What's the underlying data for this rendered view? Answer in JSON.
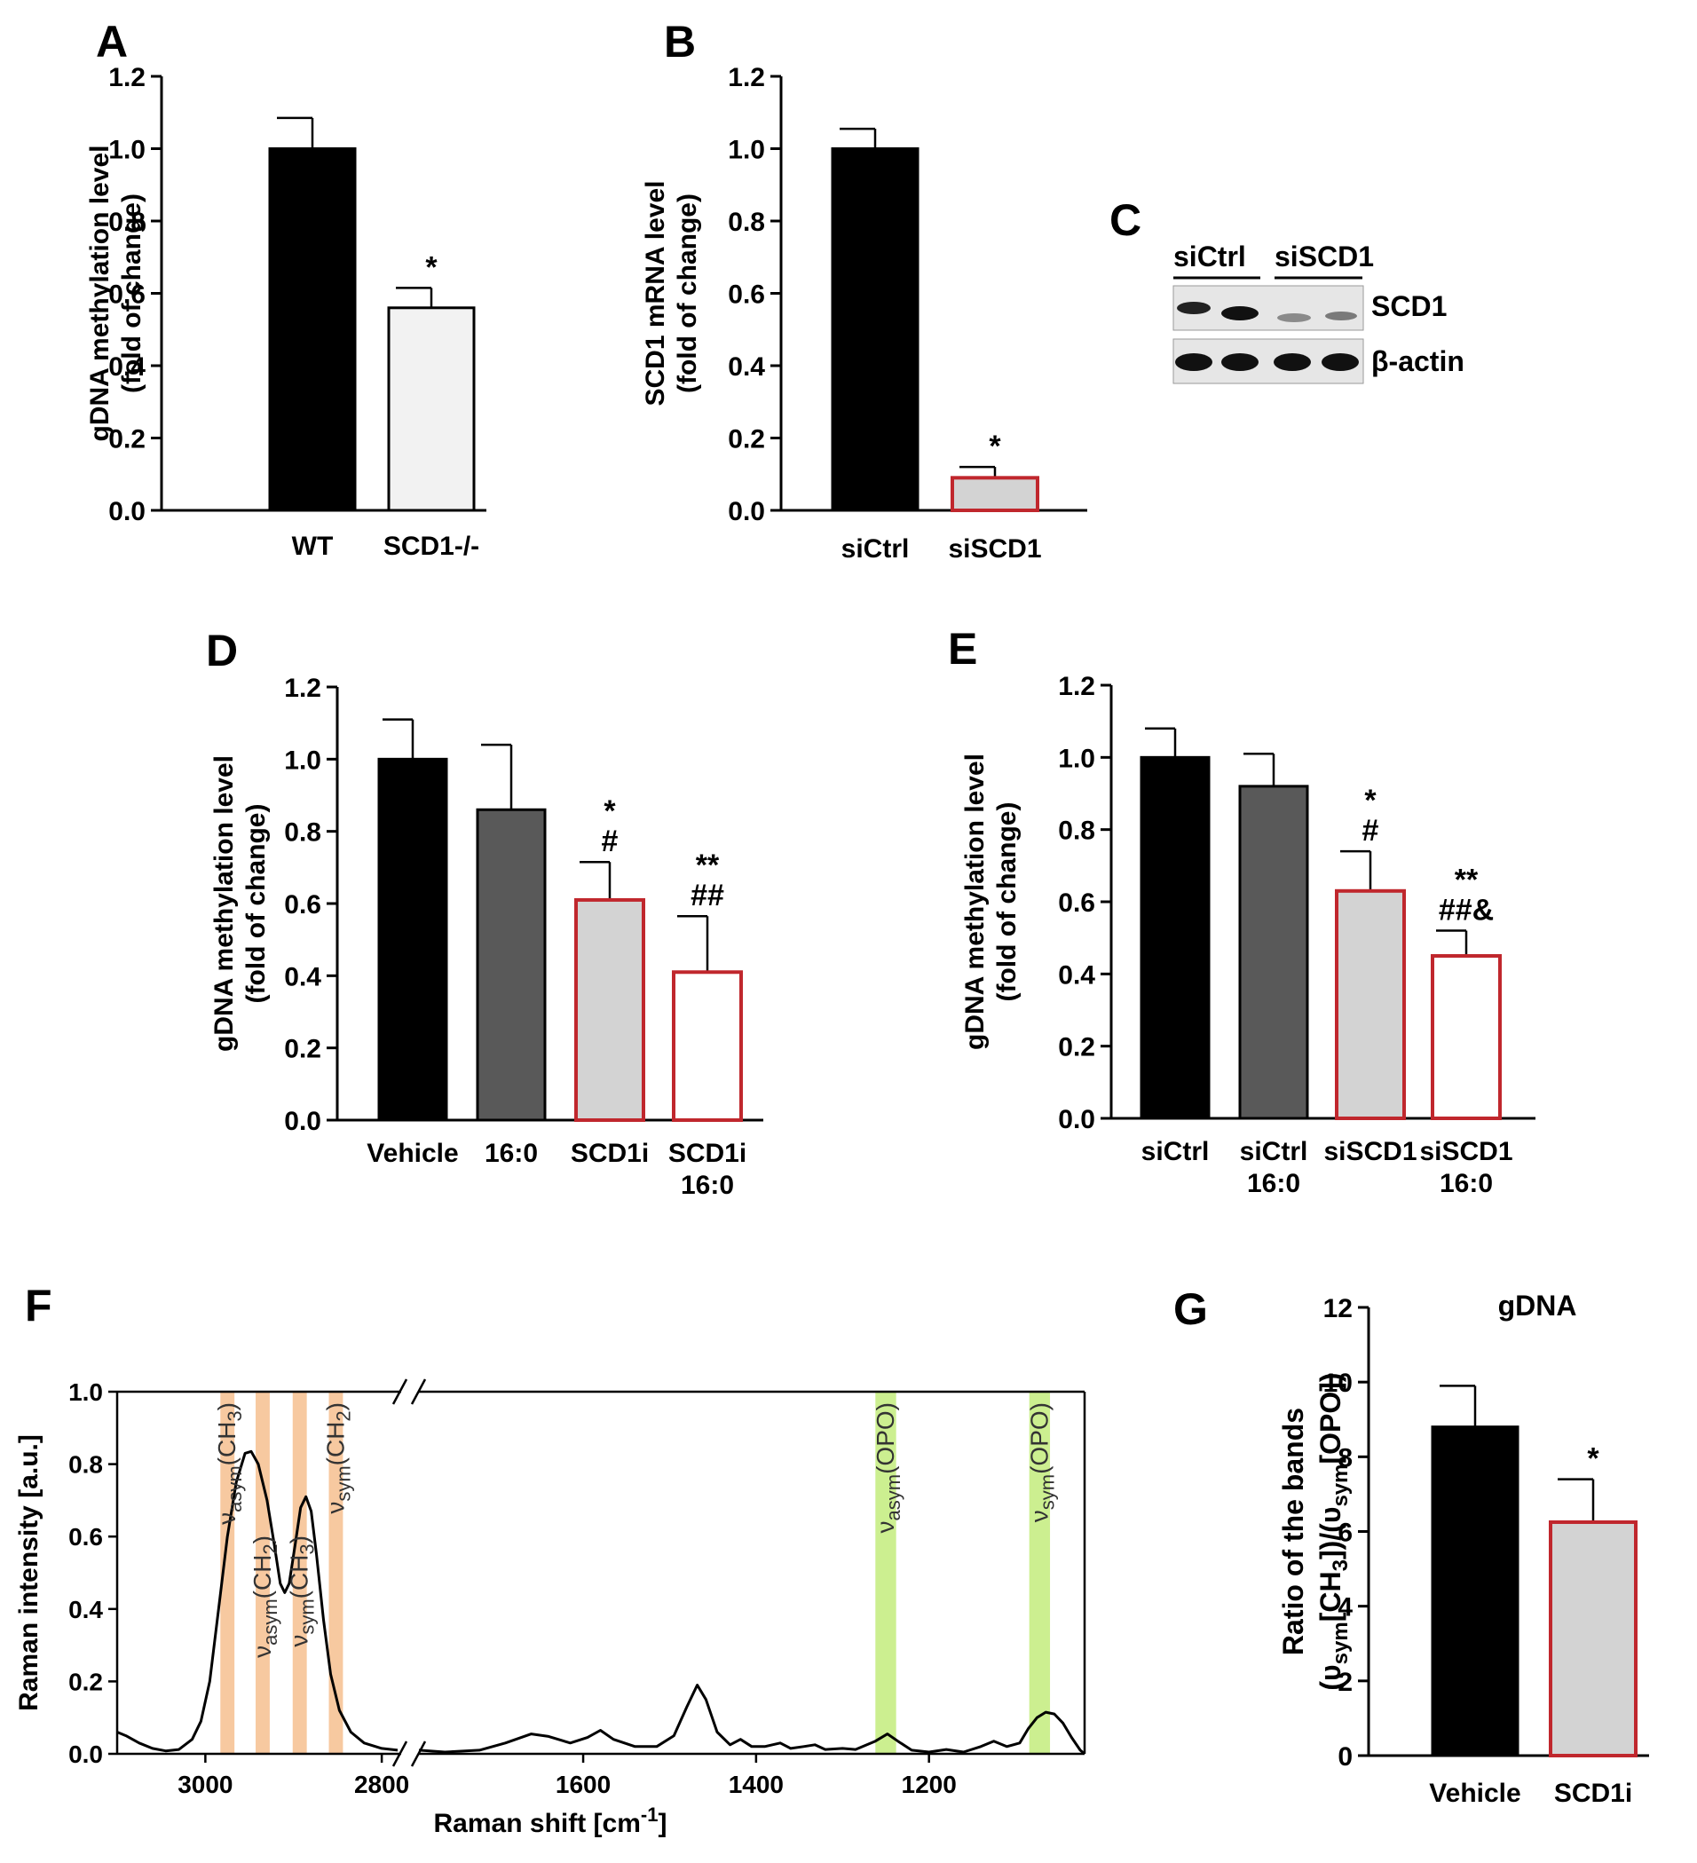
{
  "figure": {
    "panel_letters": [
      "A",
      "B",
      "C",
      "D",
      "E",
      "F",
      "G"
    ]
  },
  "chart_data": [
    {
      "panel": "A",
      "type": "bar",
      "categories": [
        "WT",
        "SCD1-/-"
      ],
      "values": [
        1.0,
        0.56
      ],
      "errors": [
        0.085,
        0.055
      ],
      "annotations": [
        "",
        "*"
      ],
      "ylabel_lines": [
        "gDNA methylation level",
        "(fold of change)"
      ],
      "ylim": [
        0,
        1.2
      ],
      "yticks": [
        0.0,
        0.2,
        0.4,
        0.6,
        0.8,
        1.0,
        1.2
      ],
      "bar_fill": [
        "#000000",
        "#f2f2f2"
      ],
      "bar_stroke": [
        "#000000",
        "#000000"
      ]
    },
    {
      "panel": "B",
      "type": "bar",
      "categories": [
        "siCtrl",
        "siSCD1"
      ],
      "values": [
        1.0,
        0.09
      ],
      "errors": [
        0.055,
        0.03
      ],
      "annotations": [
        "",
        "*"
      ],
      "ylabel_lines": [
        "SCD1 mRNA level",
        "(fold of change)"
      ],
      "ylim": [
        0,
        1.2
      ],
      "yticks": [
        0.0,
        0.2,
        0.4,
        0.6,
        0.8,
        1.0,
        1.2
      ],
      "bar_fill": [
        "#000000",
        "#d3d3d3"
      ],
      "bar_stroke": [
        "#000000",
        "#c0272d"
      ]
    },
    {
      "panel": "D",
      "type": "bar",
      "categories": [
        [
          "Vehicle"
        ],
        [
          "16:0"
        ],
        [
          "SCD1i"
        ],
        [
          "SCD1i",
          "16:0"
        ]
      ],
      "values": [
        1.0,
        0.86,
        0.61,
        0.41
      ],
      "errors": [
        0.11,
        0.18,
        0.105,
        0.155
      ],
      "annotations": [
        [],
        [],
        [
          "*",
          "#"
        ],
        [
          "**",
          "##"
        ]
      ],
      "ylabel_lines": [
        "gDNA methylation level",
        "(fold of change)"
      ],
      "ylim": [
        0,
        1.2
      ],
      "yticks": [
        0.0,
        0.2,
        0.4,
        0.6,
        0.8,
        1.0,
        1.2
      ],
      "bar_fill": [
        "#000000",
        "#595959",
        "#d3d3d3",
        "#ffffff"
      ],
      "bar_stroke": [
        "#000000",
        "#000000",
        "#c0272d",
        "#c0272d"
      ]
    },
    {
      "panel": "E",
      "type": "bar",
      "categories": [
        [
          "siCtrl"
        ],
        [
          "siCtrl",
          "16:0"
        ],
        [
          "siSCD1"
        ],
        [
          "siSCD1",
          "16:0"
        ]
      ],
      "values": [
        1.0,
        0.92,
        0.63,
        0.45
      ],
      "errors": [
        0.08,
        0.09,
        0.11,
        0.07
      ],
      "annotations": [
        [],
        [],
        [
          "*",
          "#"
        ],
        [
          "**",
          "##&"
        ]
      ],
      "ylabel_lines": [
        "gDNA methylation level",
        "(fold of change)"
      ],
      "ylim": [
        0,
        1.2
      ],
      "yticks": [
        0.0,
        0.2,
        0.4,
        0.6,
        0.8,
        1.0,
        1.2
      ],
      "bar_fill": [
        "#000000",
        "#595959",
        "#d3d3d3",
        "#ffffff"
      ],
      "bar_stroke": [
        "#000000",
        "#000000",
        "#c0272d",
        "#c0272d"
      ]
    },
    {
      "panel": "F",
      "type": "line",
      "xlabel_main": "Raman shift [cm",
      "xlabel_sup": "-1",
      "xlabel_end": "]",
      "ylabel": "Raman intensity [a.u.]",
      "ylim": [
        0,
        1.0
      ],
      "yticks": [
        0.0,
        0.2,
        0.4,
        0.6,
        0.8,
        1.0
      ],
      "segment_left": {
        "xlim": [
          3100,
          2780
        ],
        "xticks": [
          3000,
          2800
        ]
      },
      "segment_right": {
        "xlim": [
          1790,
          1020
        ],
        "xticks": [
          1600,
          1400,
          1200
        ]
      },
      "spectrum_left": [
        [
          3100,
          0.06
        ],
        [
          3090,
          0.05
        ],
        [
          3075,
          0.03
        ],
        [
          3060,
          0.015
        ],
        [
          3045,
          0.008
        ],
        [
          3030,
          0.012
        ],
        [
          3015,
          0.04
        ],
        [
          3005,
          0.09
        ],
        [
          2995,
          0.2
        ],
        [
          2985,
          0.4
        ],
        [
          2975,
          0.6
        ],
        [
          2965,
          0.75
        ],
        [
          2955,
          0.83
        ],
        [
          2948,
          0.835
        ],
        [
          2940,
          0.8
        ],
        [
          2930,
          0.7
        ],
        [
          2922,
          0.58
        ],
        [
          2915,
          0.47
        ],
        [
          2910,
          0.445
        ],
        [
          2905,
          0.47
        ],
        [
          2898,
          0.58
        ],
        [
          2892,
          0.68
        ],
        [
          2886,
          0.71
        ],
        [
          2880,
          0.67
        ],
        [
          2874,
          0.55
        ],
        [
          2866,
          0.37
        ],
        [
          2858,
          0.22
        ],
        [
          2848,
          0.12
        ],
        [
          2835,
          0.06
        ],
        [
          2820,
          0.03
        ],
        [
          2800,
          0.015
        ],
        [
          2782,
          0.01
        ]
      ],
      "spectrum_right": [
        [
          1790,
          0.01
        ],
        [
          1760,
          0.005
        ],
        [
          1720,
          0.01
        ],
        [
          1690,
          0.03
        ],
        [
          1660,
          0.055
        ],
        [
          1640,
          0.048
        ],
        [
          1615,
          0.03
        ],
        [
          1595,
          0.045
        ],
        [
          1580,
          0.065
        ],
        [
          1565,
          0.04
        ],
        [
          1540,
          0.02
        ],
        [
          1515,
          0.02
        ],
        [
          1495,
          0.05
        ],
        [
          1480,
          0.13
        ],
        [
          1468,
          0.19
        ],
        [
          1458,
          0.15
        ],
        [
          1445,
          0.06
        ],
        [
          1430,
          0.025
        ],
        [
          1418,
          0.04
        ],
        [
          1405,
          0.02
        ],
        [
          1390,
          0.02
        ],
        [
          1372,
          0.03
        ],
        [
          1360,
          0.015
        ],
        [
          1345,
          0.02
        ],
        [
          1332,
          0.025
        ],
        [
          1320,
          0.012
        ],
        [
          1300,
          0.015
        ],
        [
          1285,
          0.012
        ],
        [
          1262,
          0.035
        ],
        [
          1248,
          0.055
        ],
        [
          1236,
          0.035
        ],
        [
          1220,
          0.01
        ],
        [
          1200,
          0.005
        ],
        [
          1180,
          0.012
        ],
        [
          1160,
          0.005
        ],
        [
          1140,
          0.02
        ],
        [
          1125,
          0.035
        ],
        [
          1110,
          0.02
        ],
        [
          1095,
          0.03
        ],
        [
          1085,
          0.07
        ],
        [
          1075,
          0.1
        ],
        [
          1065,
          0.115
        ],
        [
          1055,
          0.11
        ],
        [
          1045,
          0.085
        ],
        [
          1035,
          0.045
        ],
        [
          1025,
          0.01
        ],
        [
          1020,
          0.0
        ]
      ],
      "bands": [
        {
          "side": "left",
          "center": 2975,
          "width": 16,
          "color": "#f7c9a0",
          "label_base": "ν",
          "label_sub": "asym",
          "label_group": "(CH",
          "label_group_sub": "3",
          "label_close": ")",
          "label_pos": "upper"
        },
        {
          "side": "left",
          "center": 2935,
          "width": 16,
          "color": "#f7c9a0",
          "label_base": "ν",
          "label_sub": "asym",
          "label_group": "(CH",
          "label_group_sub": "2",
          "label_close": ")",
          "label_pos": "lower"
        },
        {
          "side": "left",
          "center": 2893,
          "width": 16,
          "color": "#f7c9a0",
          "label_base": "ν",
          "label_sub": "sym",
          "label_group": "(CH",
          "label_group_sub": "3",
          "label_close": ")",
          "label_pos": "lower"
        },
        {
          "side": "left",
          "center": 2852,
          "width": 16,
          "color": "#f7c9a0",
          "label_base": "ν",
          "label_sub": "sym",
          "label_group": "(CH",
          "label_group_sub": "2",
          "label_close": ")",
          "label_pos": "upper"
        },
        {
          "side": "right",
          "center": 1250,
          "width": 24,
          "color": "#ccef90",
          "label_base": "ν",
          "label_sub": "asym",
          "label_group": "(OPO",
          "label_group_sub": "",
          "label_close": ")",
          "label_pos": "upper"
        },
        {
          "side": "right",
          "center": 1072,
          "width": 24,
          "color": "#ccef90",
          "label_base": "ν",
          "label_sub": "sym",
          "label_group": "(OPO",
          "label_group_sub": "",
          "label_close": ")",
          "label_pos": "upper"
        }
      ]
    },
    {
      "panel": "G",
      "type": "bar",
      "title": "gDNA",
      "categories": [
        "Vehicle",
        "SCD1i"
      ],
      "values": [
        8.8,
        6.25
      ],
      "errors": [
        1.1,
        1.15
      ],
      "annotations": [
        "",
        "*"
      ],
      "ylabel_line1": "Ratio of the bands",
      "ylabel_line2": {
        "open": "(υ",
        "sub1": "sym",
        "mid": "[CH",
        "sub2": "3",
        "rest": "])/(υ",
        "sub3": "sym",
        "end": "[OPO])"
      },
      "ylim": [
        0,
        12
      ],
      "yticks": [
        0,
        2,
        4,
        6,
        8,
        10,
        12
      ],
      "bar_fill": [
        "#000000",
        "#d3d3d3"
      ],
      "bar_stroke": [
        "#000000",
        "#c0272d"
      ]
    }
  ],
  "blot": {
    "group_labels": [
      "siCtrl",
      "siSCD1"
    ],
    "band_labels": [
      "SCD1",
      "β-actin"
    ]
  }
}
